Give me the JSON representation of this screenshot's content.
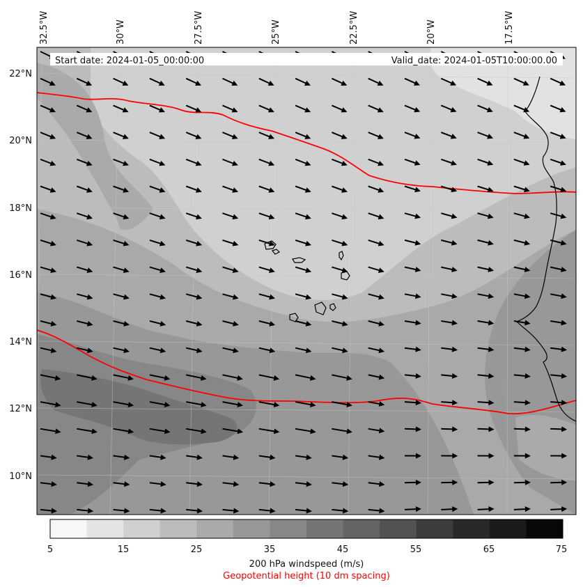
{
  "header": {
    "start_date": "Start date: 2024-01-05_00:00:00",
    "valid_date": "Valid_date: 2024-01-05T10:00:00.00"
  },
  "axes": {
    "lon_labels": [
      "32.5°W",
      "30°W",
      "27.5°W",
      "25°W",
      "22.5°W",
      "20°W",
      "17.5°W"
    ],
    "lat_labels": [
      "22°N",
      "20°N",
      "18°N",
      "16°N",
      "14°N",
      "12°N",
      "10°N"
    ]
  },
  "colorbar": {
    "ticks": [
      "5",
      "15",
      "25",
      "35",
      "45",
      "55",
      "65",
      "75"
    ],
    "label": "200 hPa windspeed (m/s)",
    "sublabel": "Geopotential height (10 dm spacing)",
    "colors": [
      "#f7f7f7",
      "#e4e4e4",
      "#d0d0d0",
      "#bcbcbc",
      "#aaaaaa",
      "#989898",
      "#878787",
      "#757575",
      "#646464",
      "#525252",
      "#3c3c3c",
      "#292929",
      "#1a1a1a",
      "#080808"
    ],
    "label_color_secondary": "#ff0000"
  },
  "contour_color": "#ff0000",
  "coast_color": "#000000"
}
